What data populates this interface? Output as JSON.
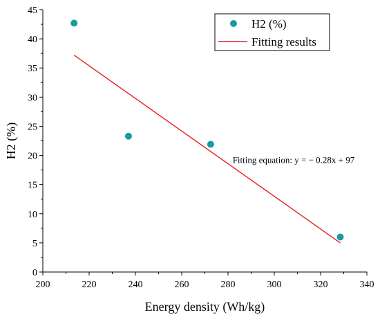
{
  "chart_data": {
    "type": "scatter",
    "xlabel": "Energy density (Wh/kg)",
    "ylabel": "H2 (%)",
    "xlim": [
      200,
      340
    ],
    "ylim": [
      0,
      45
    ],
    "xticks": [
      "200",
      "220",
      "240",
      "260",
      "280",
      "300",
      "320",
      "340"
    ],
    "yticks": [
      "0",
      "5",
      "10",
      "15",
      "20",
      "25",
      "30",
      "35",
      "40",
      "45"
    ],
    "grid": false,
    "legend_position": "top-right",
    "series": [
      {
        "name": "H2 (%)",
        "kind": "scatter",
        "color": "#1a9aa0",
        "x": [
          213.5,
          237,
          272.5,
          328.5
        ],
        "y": [
          42.7,
          23.3,
          21.9,
          6.0
        ]
      },
      {
        "name": "Fitting results",
        "kind": "line",
        "color": "#e8201c",
        "x": [
          213.5,
          328.5
        ],
        "y": [
          37.2,
          5.0
        ]
      }
    ],
    "annotation": "Fitting equation: y = − 0.28x + 97",
    "annotation_position": [
      282,
      20
    ]
  }
}
